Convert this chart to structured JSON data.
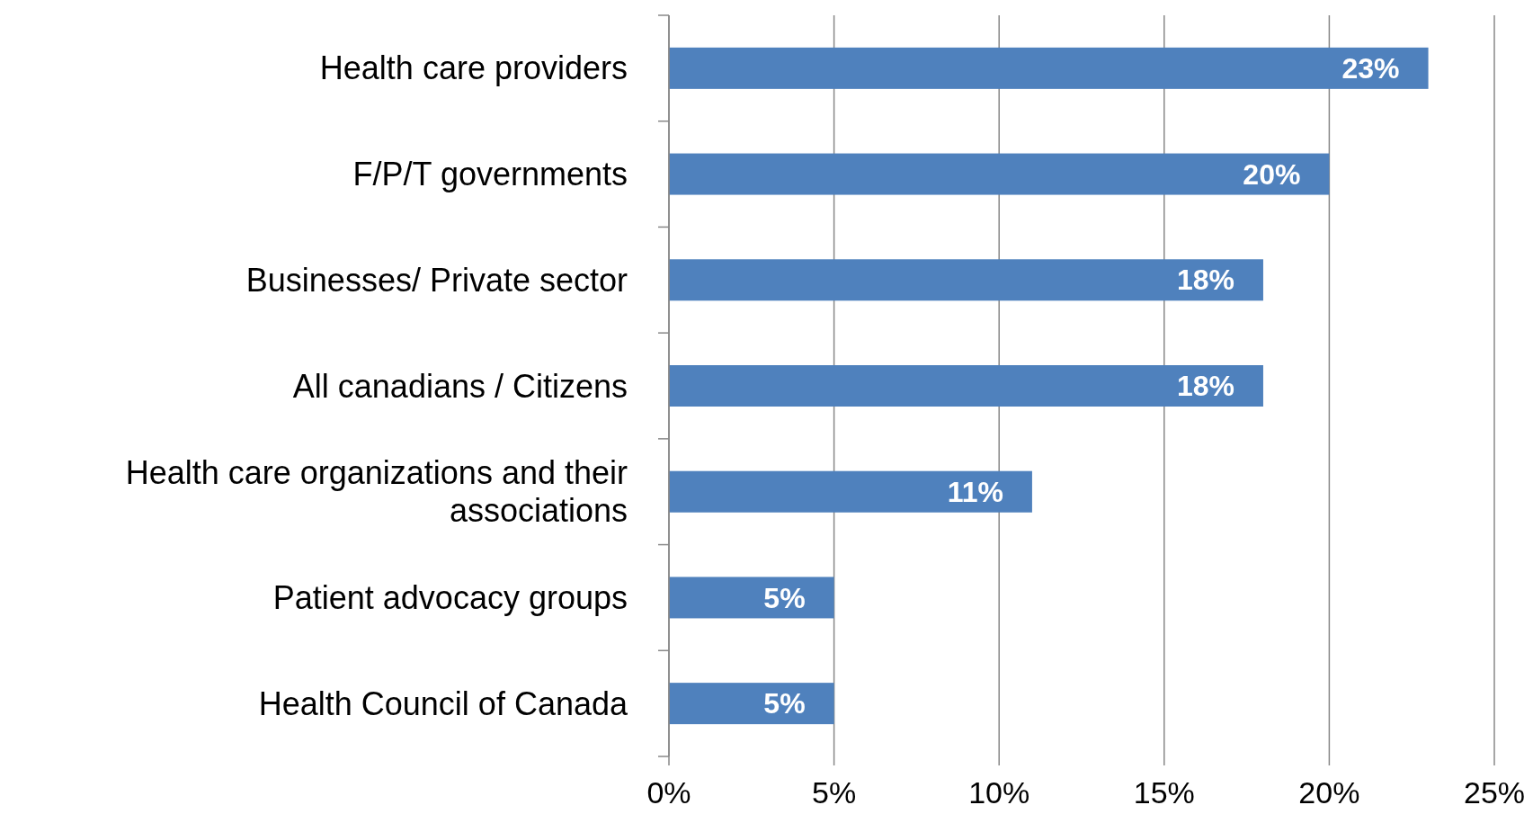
{
  "chart_data": {
    "type": "bar",
    "orientation": "horizontal",
    "categories": [
      "Health care providers",
      "F/P/T governments",
      "Businesses/ Private sector",
      "All canadians / Citizens",
      "Health care organizations and their associations",
      "Patient advocacy groups",
      "Health Council of Canada"
    ],
    "values": [
      23,
      20,
      18,
      18,
      11,
      5,
      5
    ],
    "value_labels": [
      "23%",
      "20%",
      "18%",
      "18%",
      "11%",
      "5%",
      "5%"
    ],
    "color": "#4f81bd",
    "xlim": [
      0,
      25
    ],
    "xticks": [
      {
        "value": 0,
        "label": "0%"
      },
      {
        "value": 5,
        "label": "5%"
      },
      {
        "value": 10,
        "label": "10%"
      },
      {
        "value": 15,
        "label": "15%"
      },
      {
        "value": 20,
        "label": "20%"
      },
      {
        "value": 25,
        "label": "25%"
      }
    ],
    "grid": "x"
  }
}
